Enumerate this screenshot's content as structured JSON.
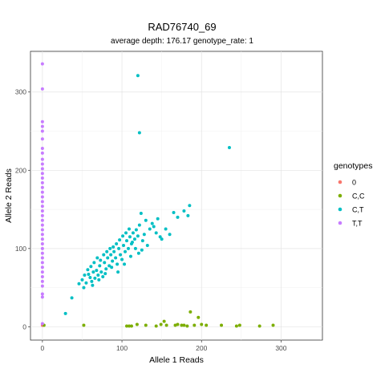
{
  "chart_data": {
    "type": "scatter",
    "title": "RAD76740_69",
    "subtitle": "average depth:  176.17  genotype_rate:  1",
    "xlabel": "Allele 1 Reads",
    "ylabel": "Allele 2 Reads",
    "xlim": [
      -15,
      352
    ],
    "ylim": [
      -17,
      352
    ],
    "xticks": [
      0,
      100,
      200,
      300
    ],
    "yticks": [
      0,
      100,
      200,
      300
    ],
    "grid": true,
    "legend": {
      "title": "genotypes",
      "position": "right"
    },
    "series": [
      {
        "name": "0",
        "color": "#F8766D",
        "points": [
          [
            0,
            2
          ]
        ]
      },
      {
        "name": "C,C",
        "color": "#7CAE00",
        "points": [
          [
            2,
            2
          ],
          [
            52,
            2
          ],
          [
            106,
            1
          ],
          [
            109,
            1
          ],
          [
            112,
            1
          ],
          [
            119,
            3
          ],
          [
            130,
            2
          ],
          [
            143,
            1
          ],
          [
            149,
            3
          ],
          [
            153,
            7
          ],
          [
            156,
            2
          ],
          [
            167,
            2
          ],
          [
            170,
            3
          ],
          [
            175,
            2
          ],
          [
            178,
            2
          ],
          [
            182,
            1
          ],
          [
            186,
            19
          ],
          [
            191,
            2
          ],
          [
            196,
            12
          ],
          [
            200,
            3
          ],
          [
            206,
            2
          ],
          [
            225,
            2
          ],
          [
            244,
            1
          ],
          [
            248,
            2
          ],
          [
            273,
            1
          ],
          [
            290,
            2
          ]
        ]
      },
      {
        "name": "C,T",
        "color": "#00BFC4",
        "points": [
          [
            120,
            321
          ],
          [
            122,
            248
          ],
          [
            235,
            229
          ],
          [
            29,
            17
          ],
          [
            37,
            37
          ],
          [
            46,
            55
          ],
          [
            50,
            60
          ],
          [
            52,
            50
          ],
          [
            55,
            56
          ],
          [
            58,
            67
          ],
          [
            60,
            63
          ],
          [
            62,
            58
          ],
          [
            64,
            70
          ],
          [
            66,
            62
          ],
          [
            68,
            72
          ],
          [
            70,
            66
          ],
          [
            72,
            78
          ],
          [
            74,
            70
          ],
          [
            76,
            64
          ],
          [
            78,
            82
          ],
          [
            80,
            74
          ],
          [
            82,
            88
          ],
          [
            84,
            78
          ],
          [
            86,
            92
          ],
          [
            88,
            84
          ],
          [
            90,
            96
          ],
          [
            92,
            88
          ],
          [
            94,
            80
          ],
          [
            96,
            100
          ],
          [
            98,
            92
          ],
          [
            100,
            86
          ],
          [
            102,
            104
          ],
          [
            104,
            96
          ],
          [
            106,
            110
          ],
          [
            108,
            100
          ],
          [
            110,
            115
          ],
          [
            112,
            106
          ],
          [
            114,
            120
          ],
          [
            116,
            112
          ],
          [
            118,
            124
          ],
          [
            120,
            116
          ],
          [
            122,
            130
          ],
          [
            124,
            145
          ],
          [
            126,
            110
          ],
          [
            128,
            118
          ],
          [
            130,
            136
          ],
          [
            132,
            104
          ],
          [
            135,
            125
          ],
          [
            138,
            132
          ],
          [
            140,
            128
          ],
          [
            143,
            120
          ],
          [
            145,
            138
          ],
          [
            148,
            115
          ],
          [
            150,
            112
          ],
          [
            155,
            125
          ],
          [
            160,
            118
          ],
          [
            165,
            146
          ],
          [
            170,
            140
          ],
          [
            178,
            148
          ],
          [
            185,
            155
          ],
          [
            183,
            142
          ],
          [
            53,
            66
          ],
          [
            57,
            73
          ],
          [
            61,
            77
          ],
          [
            65,
            82
          ],
          [
            69,
            88
          ],
          [
            73,
            85
          ],
          [
            77,
            92
          ],
          [
            81,
            96
          ],
          [
            85,
            100
          ],
          [
            89,
            102
          ],
          [
            93,
            106
          ],
          [
            97,
            111
          ],
          [
            101,
            116
          ],
          [
            105,
            120
          ],
          [
            109,
            125
          ],
          [
            113,
            108
          ],
          [
            117,
            100
          ],
          [
            121,
            94
          ],
          [
            125,
            98
          ],
          [
            63,
            53
          ],
          [
            71,
            60
          ],
          [
            79,
            68
          ],
          [
            87,
            76
          ],
          [
            95,
            70
          ],
          [
            103,
            80
          ],
          [
            111,
            90
          ]
        ]
      },
      {
        "name": "T,T",
        "color": "#C77CFF",
        "points": [
          [
            0,
            336
          ],
          [
            0,
            304
          ],
          [
            0,
            262
          ],
          [
            0,
            256
          ],
          [
            0,
            250
          ],
          [
            0,
            240
          ],
          [
            0,
            228
          ],
          [
            0,
            222
          ],
          [
            0,
            214
          ],
          [
            0,
            208
          ],
          [
            0,
            202
          ],
          [
            0,
            196
          ],
          [
            0,
            190
          ],
          [
            0,
            184
          ],
          [
            0,
            178
          ],
          [
            0,
            172
          ],
          [
            0,
            166
          ],
          [
            0,
            160
          ],
          [
            0,
            154
          ],
          [
            0,
            148
          ],
          [
            0,
            142
          ],
          [
            0,
            136
          ],
          [
            0,
            130
          ],
          [
            0,
            124
          ],
          [
            0,
            118
          ],
          [
            0,
            112
          ],
          [
            0,
            106
          ],
          [
            0,
            100
          ],
          [
            0,
            94
          ],
          [
            0,
            88
          ],
          [
            0,
            82
          ],
          [
            0,
            76
          ],
          [
            0,
            70
          ],
          [
            0,
            64
          ],
          [
            0,
            58
          ],
          [
            0,
            52
          ],
          [
            0,
            42
          ],
          [
            0,
            38
          ],
          [
            0,
            4
          ]
        ]
      }
    ]
  }
}
